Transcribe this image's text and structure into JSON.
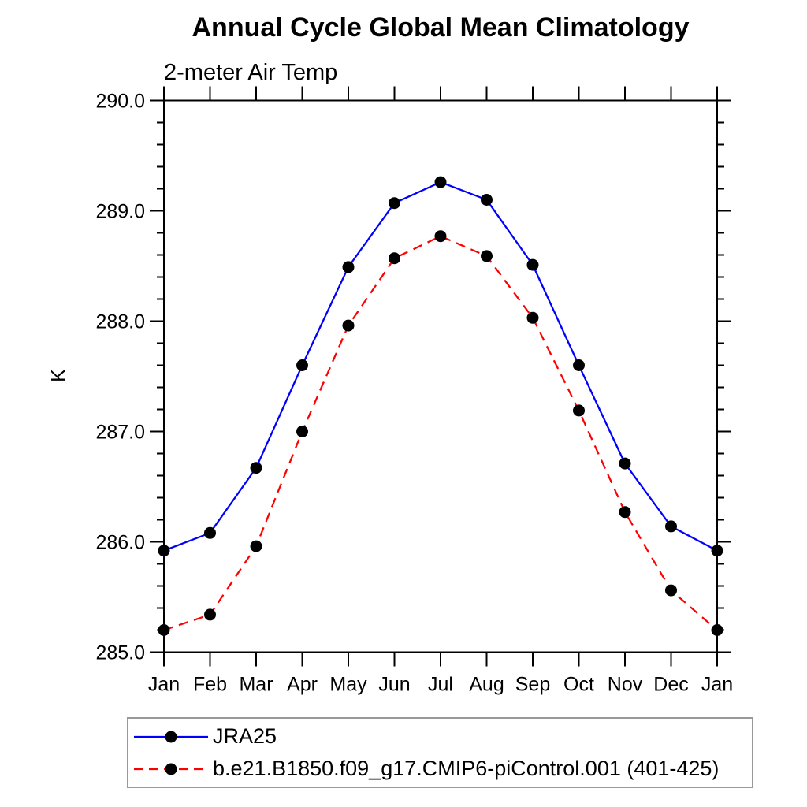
{
  "chart_data": {
    "type": "line",
    "title": "Annual Cycle Global Mean Climatology",
    "subtitle": "2-meter Air Temp",
    "ylabel": "K",
    "xlabel": "",
    "x_tick_labels": [
      "Jan",
      "Feb",
      "Mar",
      "Apr",
      "May",
      "Jun",
      "Jul",
      "Aug",
      "Sep",
      "Oct",
      "Nov",
      "Dec",
      "Jan"
    ],
    "ylim": [
      285.0,
      290.0
    ],
    "y_major_step": 1.0,
    "y_minor_step": 0.2,
    "y_major_tick_labels": [
      "285.0",
      "286.0",
      "287.0",
      "288.0",
      "289.0",
      "290.0"
    ],
    "grid": false,
    "legend_position": "bottom-left",
    "axis_color": "#000000",
    "marker_color": "#000000",
    "series": [
      {
        "name": "JRA25",
        "color": "#0000ff",
        "line_style": "solid",
        "marker": "filled-circle",
        "values": [
          285.92,
          286.08,
          286.67,
          287.6,
          288.49,
          289.07,
          289.26,
          289.1,
          288.51,
          287.6,
          286.71,
          286.14,
          285.92
        ]
      },
      {
        "name": "b.e21.B1850.f09_g17.CMIP6-piControl.001 (401-425)",
        "color": "#ff0000",
        "line_style": "dashed",
        "marker": "filled-circle",
        "values": [
          285.2,
          285.34,
          285.96,
          287.0,
          287.96,
          288.57,
          288.77,
          288.59,
          288.03,
          287.19,
          286.27,
          285.56,
          285.2
        ]
      }
    ]
  }
}
